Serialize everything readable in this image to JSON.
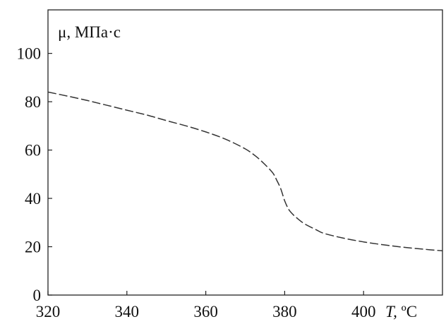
{
  "chart_data": {
    "type": "line",
    "ylabel": "μ, МПа·с",
    "xlabel_var": "T,",
    "xlabel_unit": " ºC",
    "xlim": [
      320,
      420
    ],
    "ylim": [
      0,
      118
    ],
    "x_ticks": [
      320,
      340,
      360,
      380,
      400
    ],
    "x_tick_labels": [
      "320",
      "340",
      "360",
      "380",
      "400"
    ],
    "y_ticks": [
      0,
      20,
      40,
      60,
      80,
      100
    ],
    "y_tick_labels": [
      "0",
      "20",
      "40",
      "60",
      "80",
      "100"
    ],
    "grid": false,
    "series": [
      {
        "style": "dashed",
        "color": "#333333",
        "x": [
          320,
          325,
          330,
          335,
          340,
          345,
          350,
          355,
          360,
          365,
          370,
          373,
          375,
          377,
          378,
          379,
          380,
          381,
          382,
          383,
          385,
          388,
          390,
          395,
          400,
          405,
          410,
          415,
          420
        ],
        "y": [
          84,
          82.3,
          80.5,
          78.5,
          76.5,
          74.5,
          72.2,
          70,
          67.5,
          64.5,
          60.5,
          57,
          54,
          50.5,
          47.5,
          44,
          39,
          35.5,
          33.5,
          32,
          29.5,
          27,
          25.5,
          23.5,
          22,
          20.8,
          19.8,
          19,
          18.3
        ]
      }
    ]
  }
}
